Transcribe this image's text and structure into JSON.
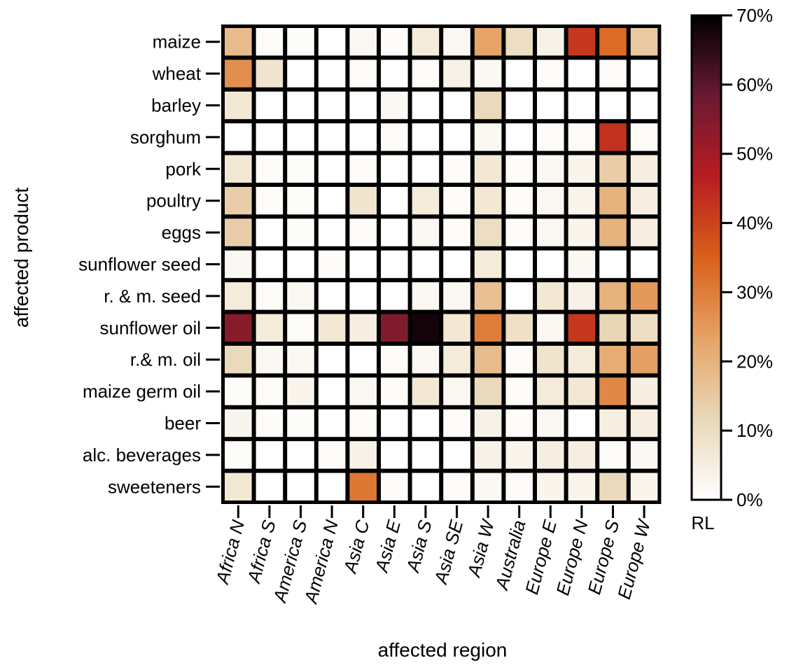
{
  "chart_data": {
    "type": "heatmap",
    "xlabel": "affected region",
    "ylabel": "affected product",
    "x_categories": [
      "Africa N",
      "Africa S",
      "America S",
      "America N",
      "Asia C",
      "Asia E",
      "Asia S",
      "Asia SE",
      "Asia W",
      "Australia",
      "Europe E",
      "Europe N",
      "Europe S",
      "Europe W"
    ],
    "y_categories": [
      "maize",
      "wheat",
      "barley",
      "sorghum",
      "pork",
      "poultry",
      "eggs",
      "sunflower seed",
      "r. & m. seed",
      "sunflower oil",
      "r.& m.  oil",
      "maize germ oil",
      "beer",
      "alc. beverages",
      "sweeteners"
    ],
    "values": [
      [
        18,
        1,
        1,
        0,
        2,
        1,
        6,
        2,
        23,
        10,
        4,
        42,
        33,
        15
      ],
      [
        27,
        8,
        0,
        0,
        1,
        0,
        1,
        4,
        2,
        0,
        1,
        0,
        1,
        0
      ],
      [
        7,
        0,
        0,
        0,
        0,
        2,
        0,
        0,
        11,
        0,
        0,
        0,
        0,
        0
      ],
      [
        0,
        0,
        0,
        0,
        0,
        1,
        0,
        0,
        2,
        0,
        1,
        1,
        43,
        1
      ],
      [
        7,
        1,
        1,
        0,
        1,
        0,
        0,
        1,
        7,
        1,
        2,
        3,
        14,
        5
      ],
      [
        14,
        1,
        1,
        0,
        8,
        0,
        6,
        1,
        7,
        1,
        2,
        3,
        20,
        5
      ],
      [
        14,
        0,
        1,
        0,
        1,
        0,
        2,
        1,
        10,
        1,
        2,
        3,
        20,
        5
      ],
      [
        2,
        0,
        0,
        1,
        0,
        0,
        0,
        0,
        6,
        0,
        0,
        2,
        0,
        0
      ],
      [
        6,
        1,
        2,
        0,
        0,
        0,
        2,
        2,
        17,
        0,
        7,
        4,
        20,
        25
      ],
      [
        54,
        6,
        1,
        7,
        5,
        55,
        68,
        7,
        30,
        9,
        2,
        42,
        12,
        10
      ],
      [
        11,
        2,
        2,
        0,
        0,
        1,
        2,
        6,
        18,
        1,
        8,
        6,
        21,
        24
      ],
      [
        1,
        1,
        3,
        0,
        2,
        1,
        7,
        2,
        11,
        1,
        6,
        7,
        28,
        5
      ],
      [
        3,
        1,
        1,
        0,
        1,
        0,
        0,
        1,
        4,
        1,
        2,
        0,
        5,
        5
      ],
      [
        1,
        0,
        0,
        1,
        4,
        0,
        0,
        0,
        4,
        3,
        5,
        5,
        1,
        2
      ],
      [
        7,
        0,
        0,
        0,
        31,
        1,
        0,
        1,
        2,
        1,
        3,
        3,
        11,
        3
      ]
    ],
    "colorbar": {
      "label": "RL",
      "range": [
        0,
        70
      ],
      "ticks": [
        "0%",
        "10%",
        "20%",
        "30%",
        "40%",
        "50%",
        "60%",
        "70%"
      ]
    },
    "colormap": [
      "#ffffff",
      "#e9d8b8",
      "#e5a366",
      "#d9601a",
      "#b81c21",
      "#6a1a33",
      "#000000"
    ]
  }
}
